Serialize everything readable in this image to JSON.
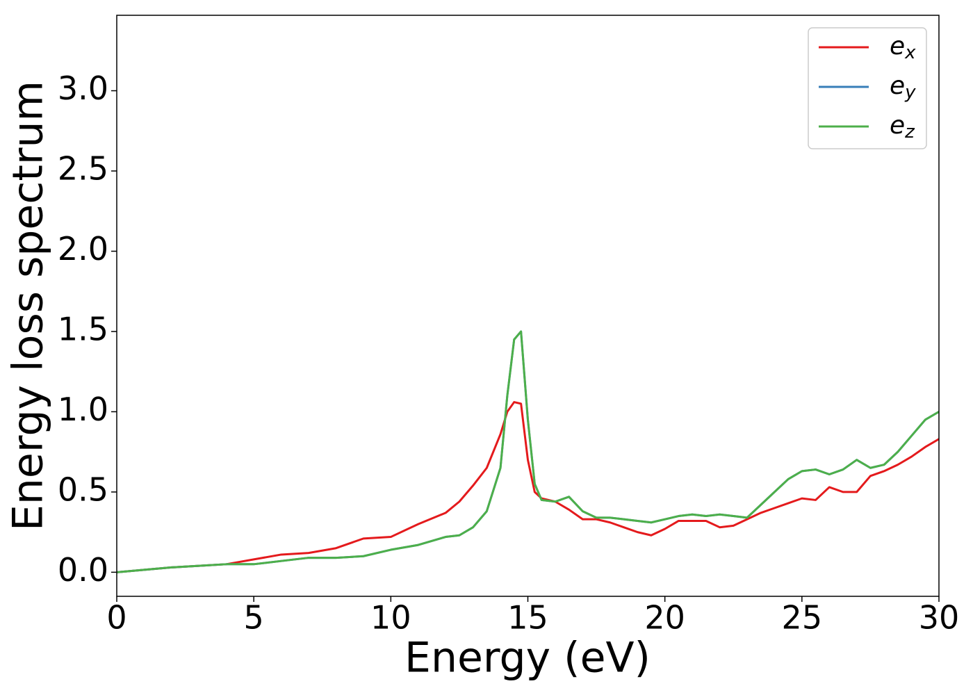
{
  "chart_data": {
    "type": "line",
    "xlabel": "Energy (eV)",
    "ylabel": "Energy loss spectrum",
    "x": [
      0,
      1,
      2,
      3,
      4,
      5,
      6,
      7,
      8,
      9,
      10,
      11,
      12,
      12.5,
      13,
      13.5,
      14,
      14.25,
      14.5,
      14.75,
      15,
      15.25,
      15.5,
      16,
      16.5,
      17,
      17.5,
      18,
      18.5,
      19,
      19.5,
      20,
      20.5,
      21,
      21.5,
      22,
      22.5,
      23,
      23.5,
      24,
      24.5,
      25,
      25.5,
      26,
      26.5,
      27,
      27.5,
      28,
      28.5,
      29,
      29.5,
      30
    ],
    "series": [
      {
        "name": "e_x",
        "color": "#e41a1c",
        "values": [
          0.0,
          0.015,
          0.03,
          0.04,
          0.05,
          0.08,
          0.11,
          0.12,
          0.15,
          0.21,
          0.22,
          0.3,
          0.37,
          0.44,
          0.54,
          0.65,
          0.86,
          1.0,
          1.06,
          1.05,
          0.7,
          0.5,
          0.46,
          0.44,
          0.39,
          0.33,
          0.33,
          0.31,
          0.28,
          0.25,
          0.23,
          0.27,
          0.32,
          0.32,
          0.32,
          0.28,
          0.29,
          0.33,
          0.37,
          0.4,
          0.43,
          0.46,
          0.45,
          0.53,
          0.5,
          0.5,
          0.6,
          0.63,
          0.67,
          0.72,
          0.78,
          0.83
        ]
      },
      {
        "name": "e_y",
        "color": "#377eb8",
        "values": [
          0.0,
          0.015,
          0.03,
          0.04,
          0.05,
          0.05,
          0.07,
          0.09,
          0.09,
          0.1,
          0.14,
          0.17,
          0.22,
          0.23,
          0.28,
          0.38,
          0.65,
          1.1,
          1.45,
          1.5,
          0.95,
          0.55,
          0.45,
          0.44,
          0.47,
          0.38,
          0.34,
          0.34,
          0.33,
          0.32,
          0.31,
          0.33,
          0.35,
          0.36,
          0.35,
          0.36,
          0.35,
          0.34,
          0.42,
          0.5,
          0.58,
          0.63,
          0.64,
          0.61,
          0.64,
          0.7,
          0.65,
          0.67,
          0.75,
          0.85,
          0.95,
          1.0
        ]
      },
      {
        "name": "e_z",
        "color": "#4daf4a",
        "values": [
          0.0,
          0.015,
          0.03,
          0.04,
          0.05,
          0.05,
          0.07,
          0.09,
          0.09,
          0.1,
          0.14,
          0.17,
          0.22,
          0.23,
          0.28,
          0.38,
          0.65,
          1.1,
          1.45,
          1.5,
          0.95,
          0.55,
          0.45,
          0.44,
          0.47,
          0.38,
          0.34,
          0.34,
          0.33,
          0.32,
          0.31,
          0.33,
          0.35,
          0.36,
          0.35,
          0.36,
          0.35,
          0.34,
          0.42,
          0.5,
          0.58,
          0.63,
          0.64,
          0.61,
          0.64,
          0.7,
          0.65,
          0.67,
          0.75,
          0.85,
          0.95,
          1.0
        ]
      }
    ],
    "xlim": [
      0,
      30
    ],
    "xticks": [
      0,
      5,
      10,
      15,
      20,
      25,
      30
    ],
    "ylim": [
      -0.15,
      3.47
    ],
    "yticks": [
      {
        "value": 0,
        "label": "0.0"
      },
      {
        "value": 0.5,
        "label": "0.5"
      },
      {
        "value": 1,
        "label": "1.0"
      },
      {
        "value": 1.5,
        "label": "1.5"
      },
      {
        "value": 2,
        "label": "2.0"
      },
      {
        "value": 2.5,
        "label": "2.5"
      },
      {
        "value": 3,
        "label": "3.0"
      }
    ],
    "legend": "upper right",
    "grid": false
  }
}
